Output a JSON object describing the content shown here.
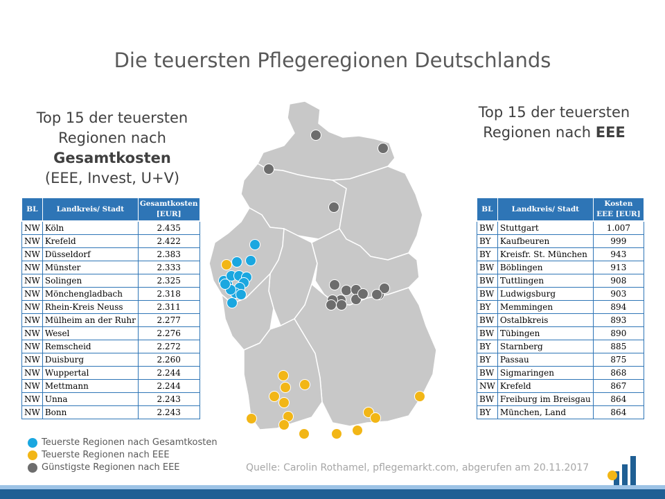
{
  "title": "Die teuersten Pflegeregionen Deutschlands",
  "left_heading": {
    "line1": "Top 15 der teuersten",
    "line2": "Regionen nach",
    "line3_bold": "Gesamtkosten",
    "line4": "(EEE, Invest, U+V)"
  },
  "right_heading": {
    "line1": "Top 15 der teuersten",
    "line2_prefix": "Regionen nach ",
    "line2_bold": "EEE"
  },
  "left_table": {
    "headers": [
      "BL",
      "Landkreis/ Stadt",
      "Gesamtkosten [EUR]"
    ],
    "rows": [
      [
        "NW",
        "Köln",
        "2.435"
      ],
      [
        "NW",
        "Krefeld",
        "2.422"
      ],
      [
        "NW",
        "Düsseldorf",
        "2.383"
      ],
      [
        "NW",
        "Münster",
        "2.333"
      ],
      [
        "NW",
        "Solingen",
        "2.325"
      ],
      [
        "NW",
        "Mönchengladbach",
        "2.318"
      ],
      [
        "NW",
        "Rhein-Kreis Neuss",
        "2.311"
      ],
      [
        "NW",
        "Mülheim an der Ruhr",
        "2.277"
      ],
      [
        "NW",
        "Wesel",
        "2.276"
      ],
      [
        "NW",
        "Remscheid",
        "2.272"
      ],
      [
        "NW",
        "Duisburg",
        "2.260"
      ],
      [
        "NW",
        "Wuppertal",
        "2.244"
      ],
      [
        "NW",
        "Mettmann",
        "2.244"
      ],
      [
        "NW",
        "Unna",
        "2.243"
      ],
      [
        "NW",
        "Bonn",
        "2.243"
      ]
    ]
  },
  "right_table": {
    "headers": [
      "BL",
      "Landkreis/ Stadt",
      "Kosten EEE [EUR]"
    ],
    "rows": [
      [
        "BW",
        "Stuttgart",
        "1.007"
      ],
      [
        "BY",
        "Kaufbeuren",
        "999"
      ],
      [
        "BY",
        "Kreisfr. St. München",
        "943"
      ],
      [
        "BW",
        "Böblingen",
        "913"
      ],
      [
        "BW",
        "Tuttlingen",
        "908"
      ],
      [
        "BW",
        "Ludwigsburg",
        "903"
      ],
      [
        "BY",
        "Memmingen",
        "894"
      ],
      [
        "BW",
        "Ostalbkreis",
        "893"
      ],
      [
        "BW",
        "Tübingen",
        "890"
      ],
      [
        "BY",
        "Starnberg",
        "885"
      ],
      [
        "BY",
        "Passau",
        "875"
      ],
      [
        "BW",
        "Sigmaringen",
        "868"
      ],
      [
        "NW",
        "Krefeld",
        "867"
      ],
      [
        "BW",
        "Freiburg im Breisgau",
        "864"
      ],
      [
        "BY",
        "München, Land",
        "864"
      ]
    ]
  },
  "legend": [
    {
      "label": "Teuerste Regionen nach Gesamtkosten",
      "color": "#1aa7e0"
    },
    {
      "label": "Teuerste Regionen nach EEE",
      "color": "#f2b616"
    },
    {
      "label": "Günstigste Regionen nach EEE",
      "color": "#6d6d6d"
    }
  ],
  "source": "Quelle: Carolin Rothamel, pflegemarkt.com, abgerufen am 20.11.2017",
  "colors": {
    "table_header": "#2e75b6",
    "map_fill": "#c8c8c8",
    "map_border": "#ffffff",
    "footer": "#1f5f94"
  }
}
